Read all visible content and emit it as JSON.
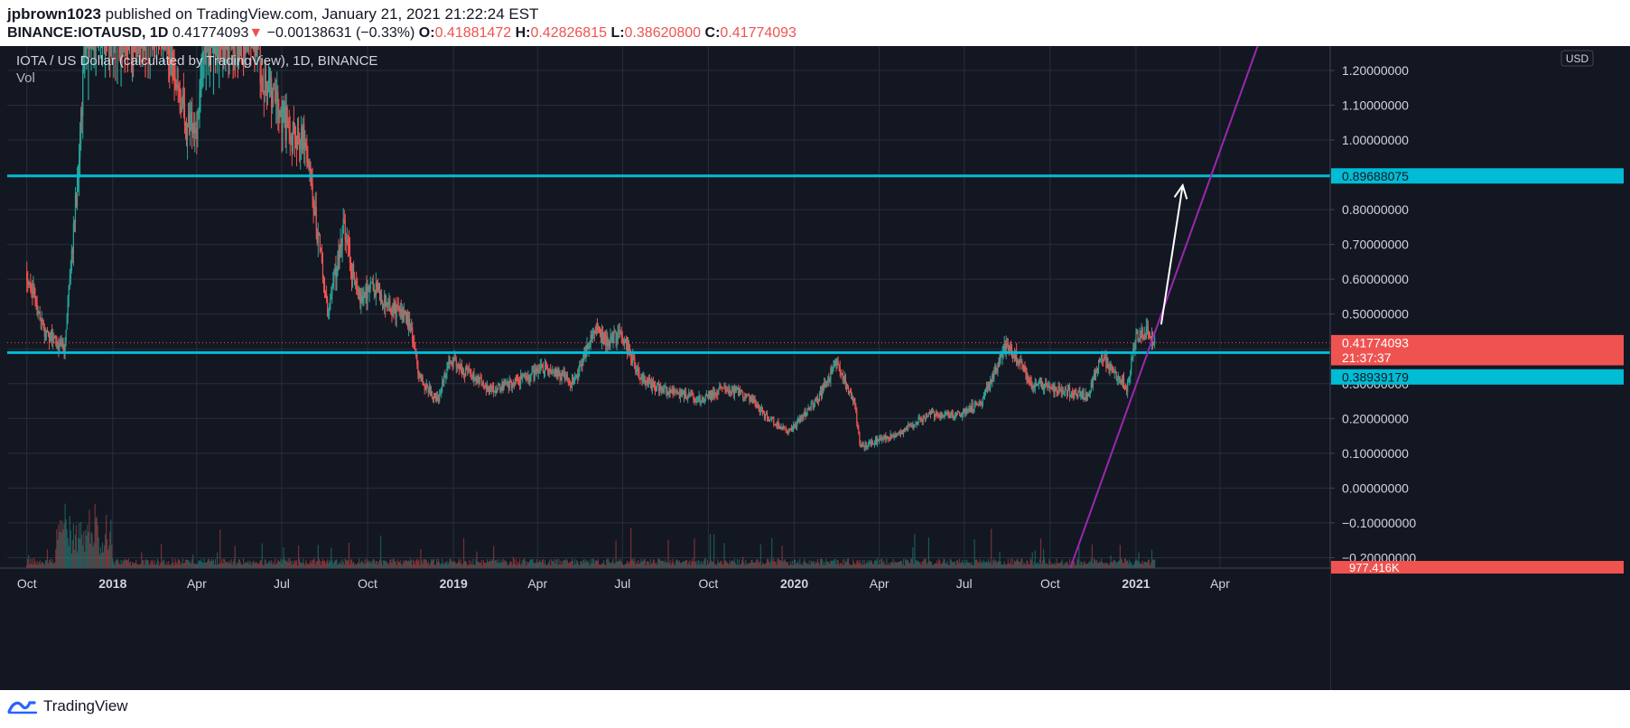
{
  "header": {
    "author": "jpbrown1023",
    "published_text": "published on TradingView.com, January 21, 2021 21:22:24 EST",
    "symbol": "BINANCE:IOTAUSD, 1D",
    "last": "0.41774093",
    "change_arrow": "▼",
    "change": "−0.00138631 (−0.33%)",
    "o_label": "O:",
    "o_value": "0.41881472",
    "h_label": "H:",
    "h_value": "0.42826815",
    "l_label": "L:",
    "l_value": "0.38620800",
    "c_label": "C:",
    "c_value": "0.41774093"
  },
  "footer": {
    "brand": "TradingView"
  },
  "colors": {
    "background": "#131722",
    "grid": "#2a2e39",
    "up": "#26a69a",
    "down": "#ef5350",
    "hline": "#00bcd4",
    "trendline": "#9c27b0",
    "arrow": "#ffffff",
    "axis_text": "#d1d4dc"
  },
  "chart_data": {
    "type": "candlestick",
    "title": "IOTA / US Dollar (calculated by TradingView), 1D, BINANCE",
    "subtitle": "Vol",
    "currency_label": "USD",
    "ylim": [
      -0.23,
      1.27
    ],
    "y_ticks": [
      1.2,
      1.1,
      1.0,
      0.9,
      0.8,
      0.7,
      0.6,
      0.5,
      0.4,
      0.3,
      0.2,
      0.1,
      0.0,
      -0.1,
      -0.2
    ],
    "y_tick_labels": [
      "1.20000000",
      "1.10000000",
      "1.00000000",
      "0.90000000",
      "0.80000000",
      "0.70000000",
      "0.60000000",
      "0.50000000",
      "0.40000000",
      "0.30000000",
      "0.20000000",
      "0.10000000",
      "0.00000000",
      "−0.10000000",
      "−0.20000000"
    ],
    "x_start": "2017-09-10",
    "x_end": "2021-07-28",
    "x_ticks": [
      {
        "date": "2017-10-01",
        "label": "Oct",
        "bold": false
      },
      {
        "date": "2018-01-01",
        "label": "2018",
        "bold": true
      },
      {
        "date": "2018-04-01",
        "label": "Apr",
        "bold": false
      },
      {
        "date": "2018-07-01",
        "label": "Jul",
        "bold": false
      },
      {
        "date": "2018-10-01",
        "label": "Oct",
        "bold": false
      },
      {
        "date": "2019-01-01",
        "label": "2019",
        "bold": true
      },
      {
        "date": "2019-04-01",
        "label": "Apr",
        "bold": false
      },
      {
        "date": "2019-07-01",
        "label": "Jul",
        "bold": false
      },
      {
        "date": "2019-10-01",
        "label": "Oct",
        "bold": false
      },
      {
        "date": "2020-01-01",
        "label": "2020",
        "bold": true
      },
      {
        "date": "2020-04-01",
        "label": "Apr",
        "bold": false
      },
      {
        "date": "2020-07-01",
        "label": "Jul",
        "bold": false
      },
      {
        "date": "2020-10-01",
        "label": "Oct",
        "bold": false
      },
      {
        "date": "2021-01-01",
        "label": "2021",
        "bold": true
      },
      {
        "date": "2021-04-01",
        "label": "Apr",
        "bold": false
      }
    ],
    "price_path": [
      {
        "date": "2017-10-01",
        "value": 0.62
      },
      {
        "date": "2017-10-20",
        "value": 0.45
      },
      {
        "date": "2017-11-10",
        "value": 0.4
      },
      {
        "date": "2017-11-26",
        "value": 0.95
      },
      {
        "date": "2017-12-06",
        "value": 1.5
      },
      {
        "date": "2017-12-20",
        "value": 1.8
      },
      {
        "date": "2018-01-10",
        "value": 1.9
      },
      {
        "date": "2018-02-06",
        "value": 1.4
      },
      {
        "date": "2018-03-01",
        "value": 1.3
      },
      {
        "date": "2018-03-20",
        "value": 1.05
      },
      {
        "date": "2018-04-01",
        "value": 1.05
      },
      {
        "date": "2018-04-25",
        "value": 1.75
      },
      {
        "date": "2018-05-20",
        "value": 1.5
      },
      {
        "date": "2018-06-10",
        "value": 1.2
      },
      {
        "date": "2018-06-25",
        "value": 1.1
      },
      {
        "date": "2018-07-15",
        "value": 1.0
      },
      {
        "date": "2018-07-25",
        "value": 1.0
      },
      {
        "date": "2018-08-10",
        "value": 0.7
      },
      {
        "date": "2018-08-20",
        "value": 0.5
      },
      {
        "date": "2018-09-05",
        "value": 0.75
      },
      {
        "date": "2018-09-20",
        "value": 0.55
      },
      {
        "date": "2018-10-05",
        "value": 0.58
      },
      {
        "date": "2018-10-25",
        "value": 0.52
      },
      {
        "date": "2018-11-15",
        "value": 0.48
      },
      {
        "date": "2018-11-25",
        "value": 0.32
      },
      {
        "date": "2018-12-15",
        "value": 0.25
      },
      {
        "date": "2018-12-28",
        "value": 0.37
      },
      {
        "date": "2019-02-10",
        "value": 0.28
      },
      {
        "date": "2019-03-25",
        "value": 0.32
      },
      {
        "date": "2019-04-10",
        "value": 0.35
      },
      {
        "date": "2019-05-10",
        "value": 0.3
      },
      {
        "date": "2019-06-01",
        "value": 0.45
      },
      {
        "date": "2019-06-15",
        "value": 0.42
      },
      {
        "date": "2019-06-30",
        "value": 0.44
      },
      {
        "date": "2019-07-20",
        "value": 0.32
      },
      {
        "date": "2019-08-15",
        "value": 0.28
      },
      {
        "date": "2019-09-25",
        "value": 0.25
      },
      {
        "date": "2019-10-15",
        "value": 0.29
      },
      {
        "date": "2019-11-10",
        "value": 0.27
      },
      {
        "date": "2019-12-01",
        "value": 0.21
      },
      {
        "date": "2019-12-25",
        "value": 0.16
      },
      {
        "date": "2020-01-25",
        "value": 0.25
      },
      {
        "date": "2020-02-15",
        "value": 0.36
      },
      {
        "date": "2020-03-05",
        "value": 0.25
      },
      {
        "date": "2020-03-12",
        "value": 0.12
      },
      {
        "date": "2020-04-15",
        "value": 0.15
      },
      {
        "date": "2020-05-25",
        "value": 0.21
      },
      {
        "date": "2020-06-25",
        "value": 0.21
      },
      {
        "date": "2020-07-20",
        "value": 0.25
      },
      {
        "date": "2020-08-15",
        "value": 0.41
      },
      {
        "date": "2020-08-30",
        "value": 0.36
      },
      {
        "date": "2020-09-10",
        "value": 0.3
      },
      {
        "date": "2020-10-15",
        "value": 0.28
      },
      {
        "date": "2020-11-10",
        "value": 0.26
      },
      {
        "date": "2020-11-25",
        "value": 0.38
      },
      {
        "date": "2020-12-10",
        "value": 0.33
      },
      {
        "date": "2020-12-22",
        "value": 0.29
      },
      {
        "date": "2021-01-02",
        "value": 0.44
      },
      {
        "date": "2021-01-15",
        "value": 0.45
      },
      {
        "date": "2021-01-21",
        "value": 0.418
      }
    ],
    "horizontal_lines": [
      {
        "value": 0.89688075,
        "label": "0.89688075"
      },
      {
        "value": 0.38939179,
        "label": "0.38939179"
      }
    ],
    "current_price": {
      "value": 0.41774093,
      "label": "0.41774093",
      "countdown": "21:37:37"
    },
    "volume_label": "977.416K",
    "trendline": {
      "x1": "2020-10-22",
      "y1": -0.235,
      "x2": "2021-05-26",
      "y2": 1.38
    },
    "arrow": {
      "x1": "2021-01-28",
      "y1": 0.47,
      "x2": "2021-02-20",
      "y2": 0.87
    }
  }
}
